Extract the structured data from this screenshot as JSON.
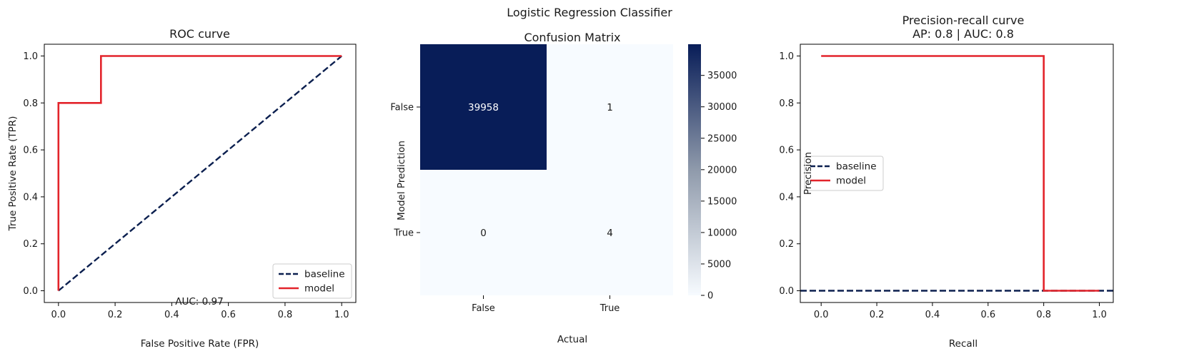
{
  "figure": {
    "suptitle": "Logistic Regression Classifier",
    "colors": {
      "baseline": "#0b1f4f",
      "model": "#e3242b",
      "cmap_low": "#f7fbff",
      "cmap_high": "#081d58"
    }
  },
  "chart_data": [
    {
      "type": "line",
      "name": "roc",
      "title": "ROC curve",
      "xlabel": "False Positive Rate (FPR)",
      "ylabel": "True Positive Rate (TPR)",
      "xlim": [
        -0.05,
        1.05
      ],
      "ylim": [
        -0.05,
        1.05
      ],
      "xticks": [
        "0.0",
        "0.2",
        "0.4",
        "0.6",
        "0.8",
        "1.0"
      ],
      "yticks": [
        "0.0",
        "0.2",
        "0.4",
        "0.6",
        "0.8",
        "1.0"
      ],
      "annotation": "AUC: 0.97",
      "legend": {
        "placement": "lower-right",
        "entries": [
          "baseline",
          "model"
        ]
      },
      "series": [
        {
          "name": "baseline",
          "style": "dashed",
          "x": [
            0,
            1
          ],
          "y": [
            0,
            1
          ]
        },
        {
          "name": "model",
          "style": "solid",
          "x": [
            0,
            0,
            0.15,
            0.15,
            1
          ],
          "y": [
            0,
            0.8,
            0.8,
            1.0,
            1.0
          ]
        }
      ]
    },
    {
      "type": "heatmap",
      "name": "confusion",
      "title": "Confusion Matrix",
      "xlabel": "Actual",
      "ylabel": "Model Prediction",
      "x_categories": [
        "False",
        "True"
      ],
      "y_categories": [
        "False",
        "True"
      ],
      "values": [
        [
          39958,
          1
        ],
        [
          0,
          4
        ]
      ],
      "cell_labels": [
        [
          "39958",
          "1"
        ],
        [
          "0",
          "4"
        ]
      ],
      "colorbar": {
        "min": 0,
        "max": 39958,
        "ticks": [
          "0",
          "5000",
          "10000",
          "15000",
          "20000",
          "25000",
          "30000",
          "35000"
        ]
      }
    },
    {
      "type": "line",
      "name": "pr",
      "title": "Precision-recall curve",
      "subtitle": "AP: 0.8 | AUC: 0.8",
      "xlabel": "Recall",
      "ylabel": "Precision",
      "xlim": [
        -0.075,
        1.05
      ],
      "ylim": [
        -0.05,
        1.05
      ],
      "xticks": [
        "0.0",
        "0.2",
        "0.4",
        "0.6",
        "0.8",
        "1.0"
      ],
      "yticks": [
        "0.0",
        "0.2",
        "0.4",
        "0.6",
        "0.8",
        "1.0"
      ],
      "legend": {
        "placement": "center-left",
        "entries": [
          "baseline",
          "model"
        ]
      },
      "series": [
        {
          "name": "baseline",
          "style": "dashed",
          "x": [
            -0.075,
            1.05
          ],
          "y": [
            0,
            0
          ]
        },
        {
          "name": "model",
          "style": "solid",
          "x": [
            0,
            0.8,
            0.8,
            1.0
          ],
          "y": [
            1.0,
            1.0,
            0.0,
            0.0
          ]
        }
      ]
    }
  ]
}
